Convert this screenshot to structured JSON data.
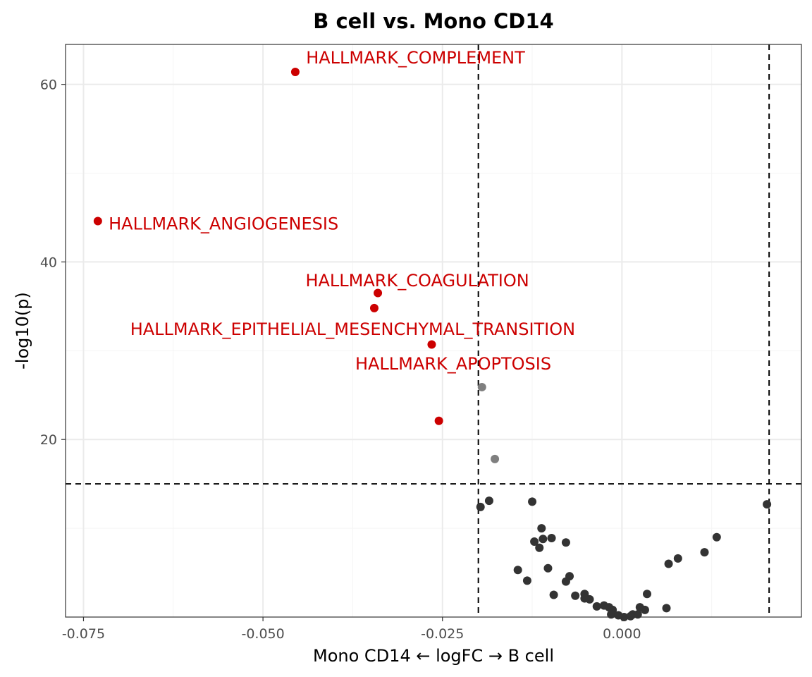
{
  "colors": {
    "significant": "#cc0000",
    "near": "#7f7f7f",
    "nonsignificant": "#333333",
    "grid_major": "#ebebeb",
    "grid_minor": "#f5f5f5",
    "panel_border": "#333333",
    "threshold": "#000000"
  },
  "chart_data": {
    "type": "scatter",
    "title": "B cell vs. Mono CD14",
    "xlabel": "Mono CD14 ← logFC → B cell",
    "ylabel": "-log10(p)",
    "xlim": [
      -0.0775,
      0.025
    ],
    "ylim": [
      0,
      64.5
    ],
    "x_ticks": [
      -0.075,
      -0.05,
      -0.025,
      0.0
    ],
    "x_tick_labels": [
      "-0.075",
      "-0.050",
      "-0.025",
      "0.000"
    ],
    "y_ticks": [
      20,
      40,
      60
    ],
    "y_tick_labels": [
      "20",
      "40",
      "60"
    ],
    "grid": true,
    "thresholds": {
      "x": [
        -0.02,
        0.0205
      ],
      "y": 15
    },
    "labeled_points": [
      {
        "label": "HALLMARK_COMPLEMENT",
        "x": -0.0455,
        "y": 61.4,
        "lx": -0.044,
        "ly": 63.0,
        "anchor": "start"
      },
      {
        "label": "HALLMARK_ANGIOGENESIS",
        "x": -0.073,
        "y": 44.6,
        "lx": -0.0715,
        "ly": 44.3,
        "anchor": "start"
      },
      {
        "label": "HALLMARK_COAGULATION",
        "x": -0.034,
        "y": 36.5,
        "lx": -0.0285,
        "ly": 37.9,
        "anchor": "middle"
      },
      {
        "label": "HALLMARK_EPITHELIAL_MESENCHYMAL_TRANSITION",
        "x": -0.0345,
        "y": 34.8,
        "lx": -0.0375,
        "ly": 32.4,
        "anchor": "middle"
      },
      {
        "label": "HALLMARK_APOPTOSIS",
        "x": -0.0265,
        "y": 30.7,
        "lx": -0.0235,
        "ly": 28.5,
        "anchor": "middle"
      }
    ],
    "series": [
      {
        "group": "significant",
        "points": [
          [
            -0.0455,
            61.4
          ],
          [
            -0.073,
            44.6
          ],
          [
            -0.034,
            36.5
          ],
          [
            -0.0345,
            34.8
          ],
          [
            -0.0265,
            30.7
          ],
          [
            -0.0255,
            22.1
          ]
        ]
      },
      {
        "group": "near",
        "points": [
          [
            -0.0195,
            25.9
          ],
          [
            -0.0177,
            17.8
          ]
        ]
      },
      {
        "group": "nonsignificant",
        "points": [
          [
            -0.0197,
            12.4
          ],
          [
            -0.0185,
            13.1
          ],
          [
            -0.0125,
            13.0
          ],
          [
            0.0202,
            12.7
          ],
          [
            -0.0112,
            10.0
          ],
          [
            -0.0122,
            8.5
          ],
          [
            -0.011,
            8.8
          ],
          [
            -0.0098,
            8.9
          ],
          [
            -0.0115,
            7.8
          ],
          [
            -0.0078,
            8.4
          ],
          [
            0.0132,
            9.0
          ],
          [
            0.0115,
            7.3
          ],
          [
            0.0078,
            6.6
          ],
          [
            0.0065,
            6.0
          ],
          [
            -0.0145,
            5.3
          ],
          [
            -0.0103,
            5.5
          ],
          [
            -0.0073,
            4.6
          ],
          [
            -0.0078,
            4.0
          ],
          [
            -0.0132,
            4.1
          ],
          [
            -0.0095,
            2.5
          ],
          [
            -0.0065,
            2.4
          ],
          [
            -0.0052,
            2.6
          ],
          [
            -0.0045,
            2.0
          ],
          [
            -0.0052,
            2.1
          ],
          [
            0.0035,
            2.6
          ],
          [
            -0.0035,
            1.2
          ],
          [
            -0.0025,
            1.3
          ],
          [
            -0.0018,
            1.1
          ],
          [
            -0.0013,
            0.8
          ],
          [
            0.0025,
            1.1
          ],
          [
            0.0032,
            0.8
          ],
          [
            0.0062,
            1.0
          ],
          [
            -0.0015,
            0.3
          ],
          [
            -0.0005,
            0.2
          ],
          [
            0.0003,
            0.0
          ],
          [
            0.0015,
            0.3
          ],
          [
            0.0022,
            0.3
          ],
          [
            0.0012,
            0.1
          ]
        ]
      }
    ]
  }
}
